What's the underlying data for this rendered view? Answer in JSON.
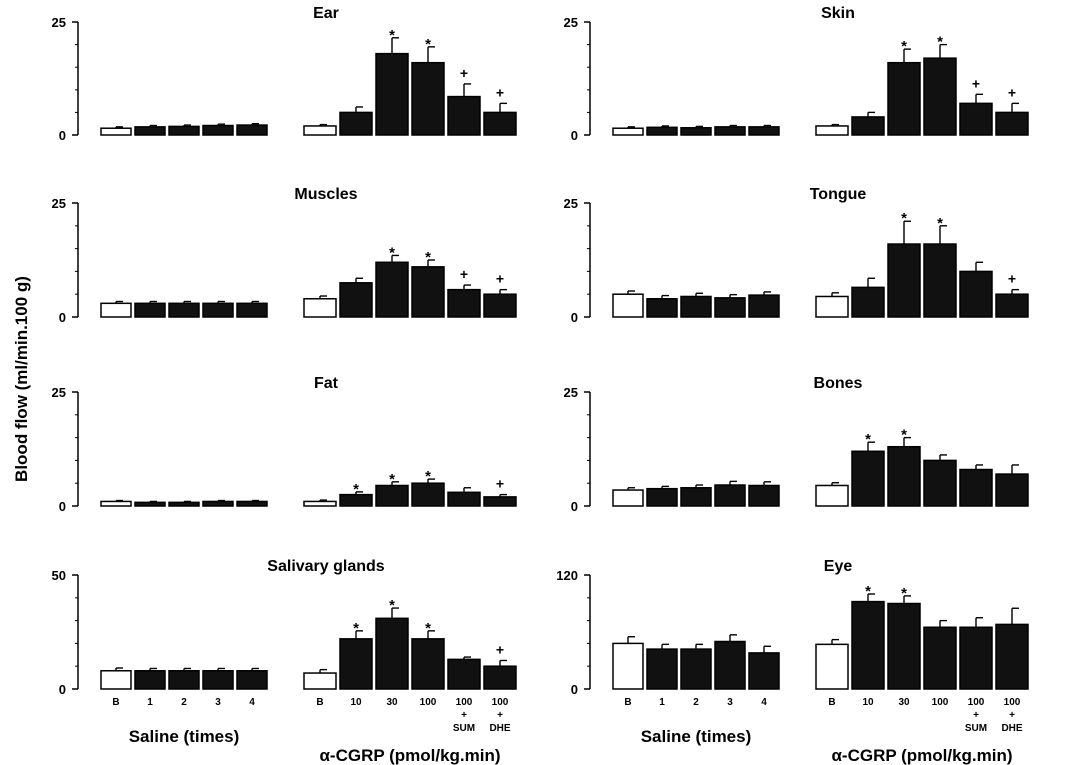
{
  "figure": {
    "ylabel": "Blood flow (ml/min.100 g)",
    "group_labels": {
      "saline": "Saline (times)",
      "cgrp": "α-CGRP (pmol/kg.min)"
    }
  },
  "chart_data": [
    {
      "type": "bar",
      "title": "Ear",
      "ylim": [
        0,
        25
      ],
      "yticks": [
        0,
        25
      ],
      "saline": {
        "categories": [
          "B",
          "1",
          "2",
          "3",
          "4"
        ],
        "values": [
          1.5,
          1.8,
          1.9,
          2.1,
          2.2
        ],
        "errors": [
          0.3,
          0.3,
          0.3,
          0.3,
          0.3
        ]
      },
      "cgrp": {
        "categories": [
          "B",
          "10",
          "30",
          "100",
          "100\n+\nSUM",
          "100\n+\nDHE"
        ],
        "values": [
          2.0,
          5.0,
          18.0,
          16.0,
          8.5,
          5.0
        ],
        "errors": [
          0.3,
          1.2,
          3.5,
          3.5,
          2.8,
          2.0
        ],
        "marks": [
          "",
          "",
          "*",
          "*",
          "+",
          "+"
        ]
      }
    },
    {
      "type": "bar",
      "title": "Skin",
      "ylim": [
        0,
        25
      ],
      "yticks": [
        0,
        25
      ],
      "saline": {
        "categories": [
          "B",
          "1",
          "2",
          "3",
          "4"
        ],
        "values": [
          1.5,
          1.7,
          1.6,
          1.8,
          1.8
        ],
        "errors": [
          0.3,
          0.3,
          0.3,
          0.3,
          0.3
        ]
      },
      "cgrp": {
        "categories": [
          "B",
          "10",
          "30",
          "100",
          "100\n+\nSUM",
          "100\n+\nDHE"
        ],
        "values": [
          2.0,
          4.0,
          16.0,
          17.0,
          7.0,
          5.0
        ],
        "errors": [
          0.3,
          1.0,
          3.0,
          3.0,
          2.0,
          2.0
        ],
        "marks": [
          "",
          "",
          "*",
          "*",
          "+",
          "+"
        ]
      }
    },
    {
      "type": "bar",
      "title": "Muscles",
      "ylim": [
        0,
        25
      ],
      "yticks": [
        0,
        25
      ],
      "saline": {
        "categories": [
          "B",
          "1",
          "2",
          "3",
          "4"
        ],
        "values": [
          3.0,
          3.0,
          3.0,
          3.0,
          3.0
        ],
        "errors": [
          0.4,
          0.4,
          0.4,
          0.4,
          0.4
        ]
      },
      "cgrp": {
        "categories": [
          "B",
          "10",
          "30",
          "100",
          "100\n+\nSUM",
          "100\n+\nDHE"
        ],
        "values": [
          4.0,
          7.5,
          12.0,
          11.0,
          6.0,
          5.0
        ],
        "errors": [
          0.6,
          1.0,
          1.5,
          1.5,
          1.0,
          1.0
        ],
        "marks": [
          "",
          "",
          "*",
          "*",
          "+",
          "+"
        ]
      }
    },
    {
      "type": "bar",
      "title": "Tongue",
      "ylim": [
        0,
        25
      ],
      "yticks": [
        0,
        25
      ],
      "saline": {
        "categories": [
          "B",
          "1",
          "2",
          "3",
          "4"
        ],
        "values": [
          5.0,
          4.0,
          4.5,
          4.2,
          4.8
        ],
        "errors": [
          0.7,
          0.7,
          0.7,
          0.7,
          0.7
        ]
      },
      "cgrp": {
        "categories": [
          "B",
          "10",
          "30",
          "100",
          "100\n+\nSUM",
          "100\n+\nDHE"
        ],
        "values": [
          4.5,
          6.5,
          16.0,
          16.0,
          10.0,
          5.0
        ],
        "errors": [
          0.8,
          2.0,
          5.0,
          4.0,
          2.0,
          1.0
        ],
        "marks": [
          "",
          "",
          "*",
          "*",
          "",
          "+"
        ]
      }
    },
    {
      "type": "bar",
      "title": "Fat",
      "ylim": [
        0,
        25
      ],
      "yticks": [
        0,
        25
      ],
      "saline": {
        "categories": [
          "B",
          "1",
          "2",
          "3",
          "4"
        ],
        "values": [
          1.0,
          0.8,
          0.8,
          1.0,
          1.0
        ],
        "errors": [
          0.2,
          0.2,
          0.2,
          0.2,
          0.2
        ]
      },
      "cgrp": {
        "categories": [
          "B",
          "10",
          "30",
          "100",
          "100\n+\nSUM",
          "100\n+\nDHE"
        ],
        "values": [
          1.0,
          2.5,
          4.5,
          5.0,
          3.0,
          2.0
        ],
        "errors": [
          0.3,
          0.6,
          0.8,
          0.9,
          1.0,
          0.5
        ],
        "marks": [
          "",
          "*",
          "*",
          "*",
          "",
          "+"
        ]
      }
    },
    {
      "type": "bar",
      "title": "Bones",
      "ylim": [
        0,
        25
      ],
      "yticks": [
        0,
        25
      ],
      "saline": {
        "categories": [
          "B",
          "1",
          "2",
          "3",
          "4"
        ],
        "values": [
          3.5,
          3.8,
          4.0,
          4.6,
          4.5
        ],
        "errors": [
          0.5,
          0.5,
          0.6,
          0.8,
          0.8
        ]
      },
      "cgrp": {
        "categories": [
          "B",
          "10",
          "30",
          "100",
          "100\n+\nSUM",
          "100\n+\nDHE"
        ],
        "values": [
          4.5,
          12.0,
          13.0,
          10.0,
          8.0,
          7.0
        ],
        "errors": [
          0.6,
          2.0,
          2.0,
          1.2,
          1.0,
          2.0
        ],
        "marks": [
          "",
          "*",
          "*",
          "",
          "",
          ""
        ]
      }
    },
    {
      "type": "bar",
      "title": "Salivary glands",
      "ylim": [
        0,
        50
      ],
      "yticks": [
        0,
        50
      ],
      "saline": {
        "categories": [
          "B",
          "1",
          "2",
          "3",
          "4"
        ],
        "values": [
          8.0,
          8.0,
          8.0,
          8.0,
          8.0
        ],
        "errors": [
          1.2,
          1.0,
          1.0,
          1.0,
          1.0
        ]
      },
      "cgrp": {
        "categories": [
          "B",
          "10",
          "30",
          "100",
          "100\n+\nSUM",
          "100\n+\nDHE"
        ],
        "values": [
          7.0,
          22.0,
          31.0,
          22.0,
          13.0,
          10.0
        ],
        "errors": [
          1.5,
          3.5,
          4.5,
          3.5,
          1.0,
          2.5
        ],
        "marks": [
          "",
          "*",
          "*",
          "*",
          "",
          "+"
        ]
      }
    },
    {
      "type": "bar",
      "title": "Eye",
      "ylim": [
        0,
        120
      ],
      "yticks": [
        0,
        120
      ],
      "saline": {
        "categories": [
          "B",
          "1",
          "2",
          "3",
          "4"
        ],
        "values": [
          48.0,
          42.0,
          42.0,
          50.0,
          38.0
        ],
        "errors": [
          7.0,
          5.0,
          5.0,
          7.0,
          7.0
        ]
      },
      "cgrp": {
        "categories": [
          "B",
          "10",
          "30",
          "100",
          "100\n+\nSUM",
          "100\n+\nDHE"
        ],
        "values": [
          47.0,
          92.0,
          90.0,
          65.0,
          65.0,
          68.0
        ],
        "errors": [
          5.0,
          8.0,
          8.0,
          7.0,
          10.0,
          17.0
        ],
        "marks": [
          "",
          "*",
          "*",
          "",
          "",
          ""
        ]
      }
    }
  ]
}
